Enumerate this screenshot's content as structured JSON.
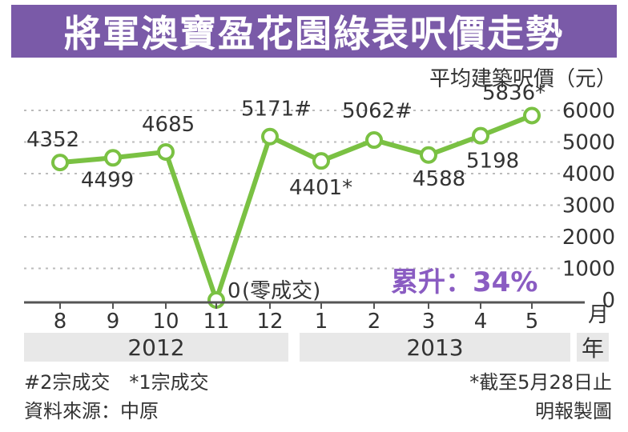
{
  "title": "將軍澳寶盈花園綠表呎價走勢",
  "unit_label": "平均建築呎價（元）",
  "month_label": "月",
  "year_label": "年",
  "accent_color": "#7a5aa8",
  "line_color": "#7ac143",
  "rise_text": "累升：34%",
  "zero_note": "(零成交)",
  "years": [
    "2012",
    "2013"
  ],
  "footnotes": {
    "left1": "#2宗成交　*1宗成交",
    "left2": "資料來源：中原",
    "right1": "*截至5月28日止",
    "right2": "明報製圖"
  },
  "chart_data": {
    "type": "line",
    "categories": [
      "8",
      "9",
      "10",
      "11",
      "12",
      "1",
      "2",
      "3",
      "4",
      "5"
    ],
    "values": [
      4352,
      4499,
      4685,
      0,
      5171,
      4401,
      5062,
      4588,
      5198,
      5836
    ],
    "labels": [
      "4352",
      "4499",
      "4685",
      "0",
      "5171#",
      "4401*",
      "5062#",
      "4588",
      "5198",
      "5836*"
    ],
    "ylim": [
      0,
      6000
    ],
    "yticks": [
      "0",
      "1000",
      "2000",
      "3000",
      "4000",
      "5000",
      "6000"
    ],
    "grid": true
  }
}
